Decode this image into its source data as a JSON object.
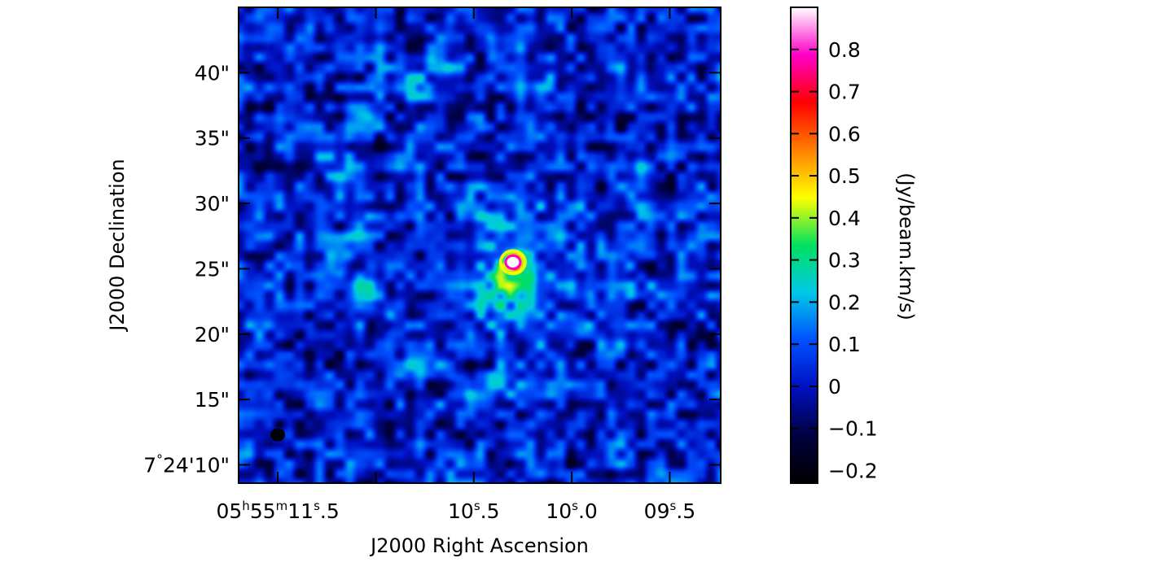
{
  "chart_data": {
    "type": "heatmap",
    "title": "",
    "xlabel": "J2000 Right Ascension",
    "ylabel": "J2000 Declination",
    "colorbar_label": "(Jy/beam.km/s)",
    "x_ticks": [
      {
        "label_parts": [
          "05",
          "h",
          "55",
          "m",
          "11",
          "s",
          ".5"
        ],
        "ra_seconds": 11.5
      },
      {
        "label_parts": [
          "10",
          "s",
          ".5"
        ],
        "ra_seconds": 10.5
      },
      {
        "label_parts": [
          "10",
          "s",
          ".0"
        ],
        "ra_seconds": 10.0
      },
      {
        "label_parts": [
          "09",
          "s",
          ".5"
        ],
        "ra_seconds": 9.5
      }
    ],
    "x_unlabeled_tick_seconds": [
      11.0
    ],
    "y_ticks": [
      {
        "label_parts": [
          "7",
          "°",
          "24'10\""
        ],
        "dec_arcsec_offset": 10
      },
      {
        "label_parts": [
          "15\""
        ],
        "dec_arcsec_offset": 15
      },
      {
        "label_parts": [
          "20\""
        ],
        "dec_arcsec_offset": 20
      },
      {
        "label_parts": [
          "25\""
        ],
        "dec_arcsec_offset": 25
      },
      {
        "label_parts": [
          "30\""
        ],
        "dec_arcsec_offset": 30
      },
      {
        "label_parts": [
          "35\""
        ],
        "dec_arcsec_offset": 35
      },
      {
        "label_parts": [
          "40\""
        ],
        "dec_arcsec_offset": 40
      }
    ],
    "xlim_ra_seconds": [
      11.7,
      9.24
    ],
    "ylim_dec_arcsec": [
      8.6,
      45.0
    ],
    "colorbar": {
      "min": -0.23,
      "max": 0.9,
      "ticks": [
        {
          "value": -0.2,
          "label": "−0.2"
        },
        {
          "value": -0.1,
          "label": "−0.1"
        },
        {
          "value": 0,
          "label": "0"
        },
        {
          "value": 0.1,
          "label": "0.1"
        },
        {
          "value": 0.2,
          "label": "0.2"
        },
        {
          "value": 0.3,
          "label": "0.3"
        },
        {
          "value": 0.4,
          "label": "0.4"
        },
        {
          "value": 0.5,
          "label": "0.5"
        },
        {
          "value": 0.6,
          "label": "0.6"
        },
        {
          "value": 0.7,
          "label": "0.7"
        },
        {
          "value": 0.8,
          "label": "0.8"
        }
      ],
      "colormap": [
        "#000000",
        "#000040",
        "#0010c0",
        "#0050ff",
        "#00c8e8",
        "#00e060",
        "#ffff00",
        "#ff8000",
        "#ff0000",
        "#ff00c8",
        "#ffffff"
      ]
    },
    "features": {
      "background_value": 0.02,
      "peak": {
        "ra_seconds": 10.3,
        "dec_arcsec": 25.5,
        "value": 0.9
      },
      "beam": {
        "ra_seconds": 11.5,
        "dec_arcsec": 12.3
      }
    },
    "grid": false
  }
}
